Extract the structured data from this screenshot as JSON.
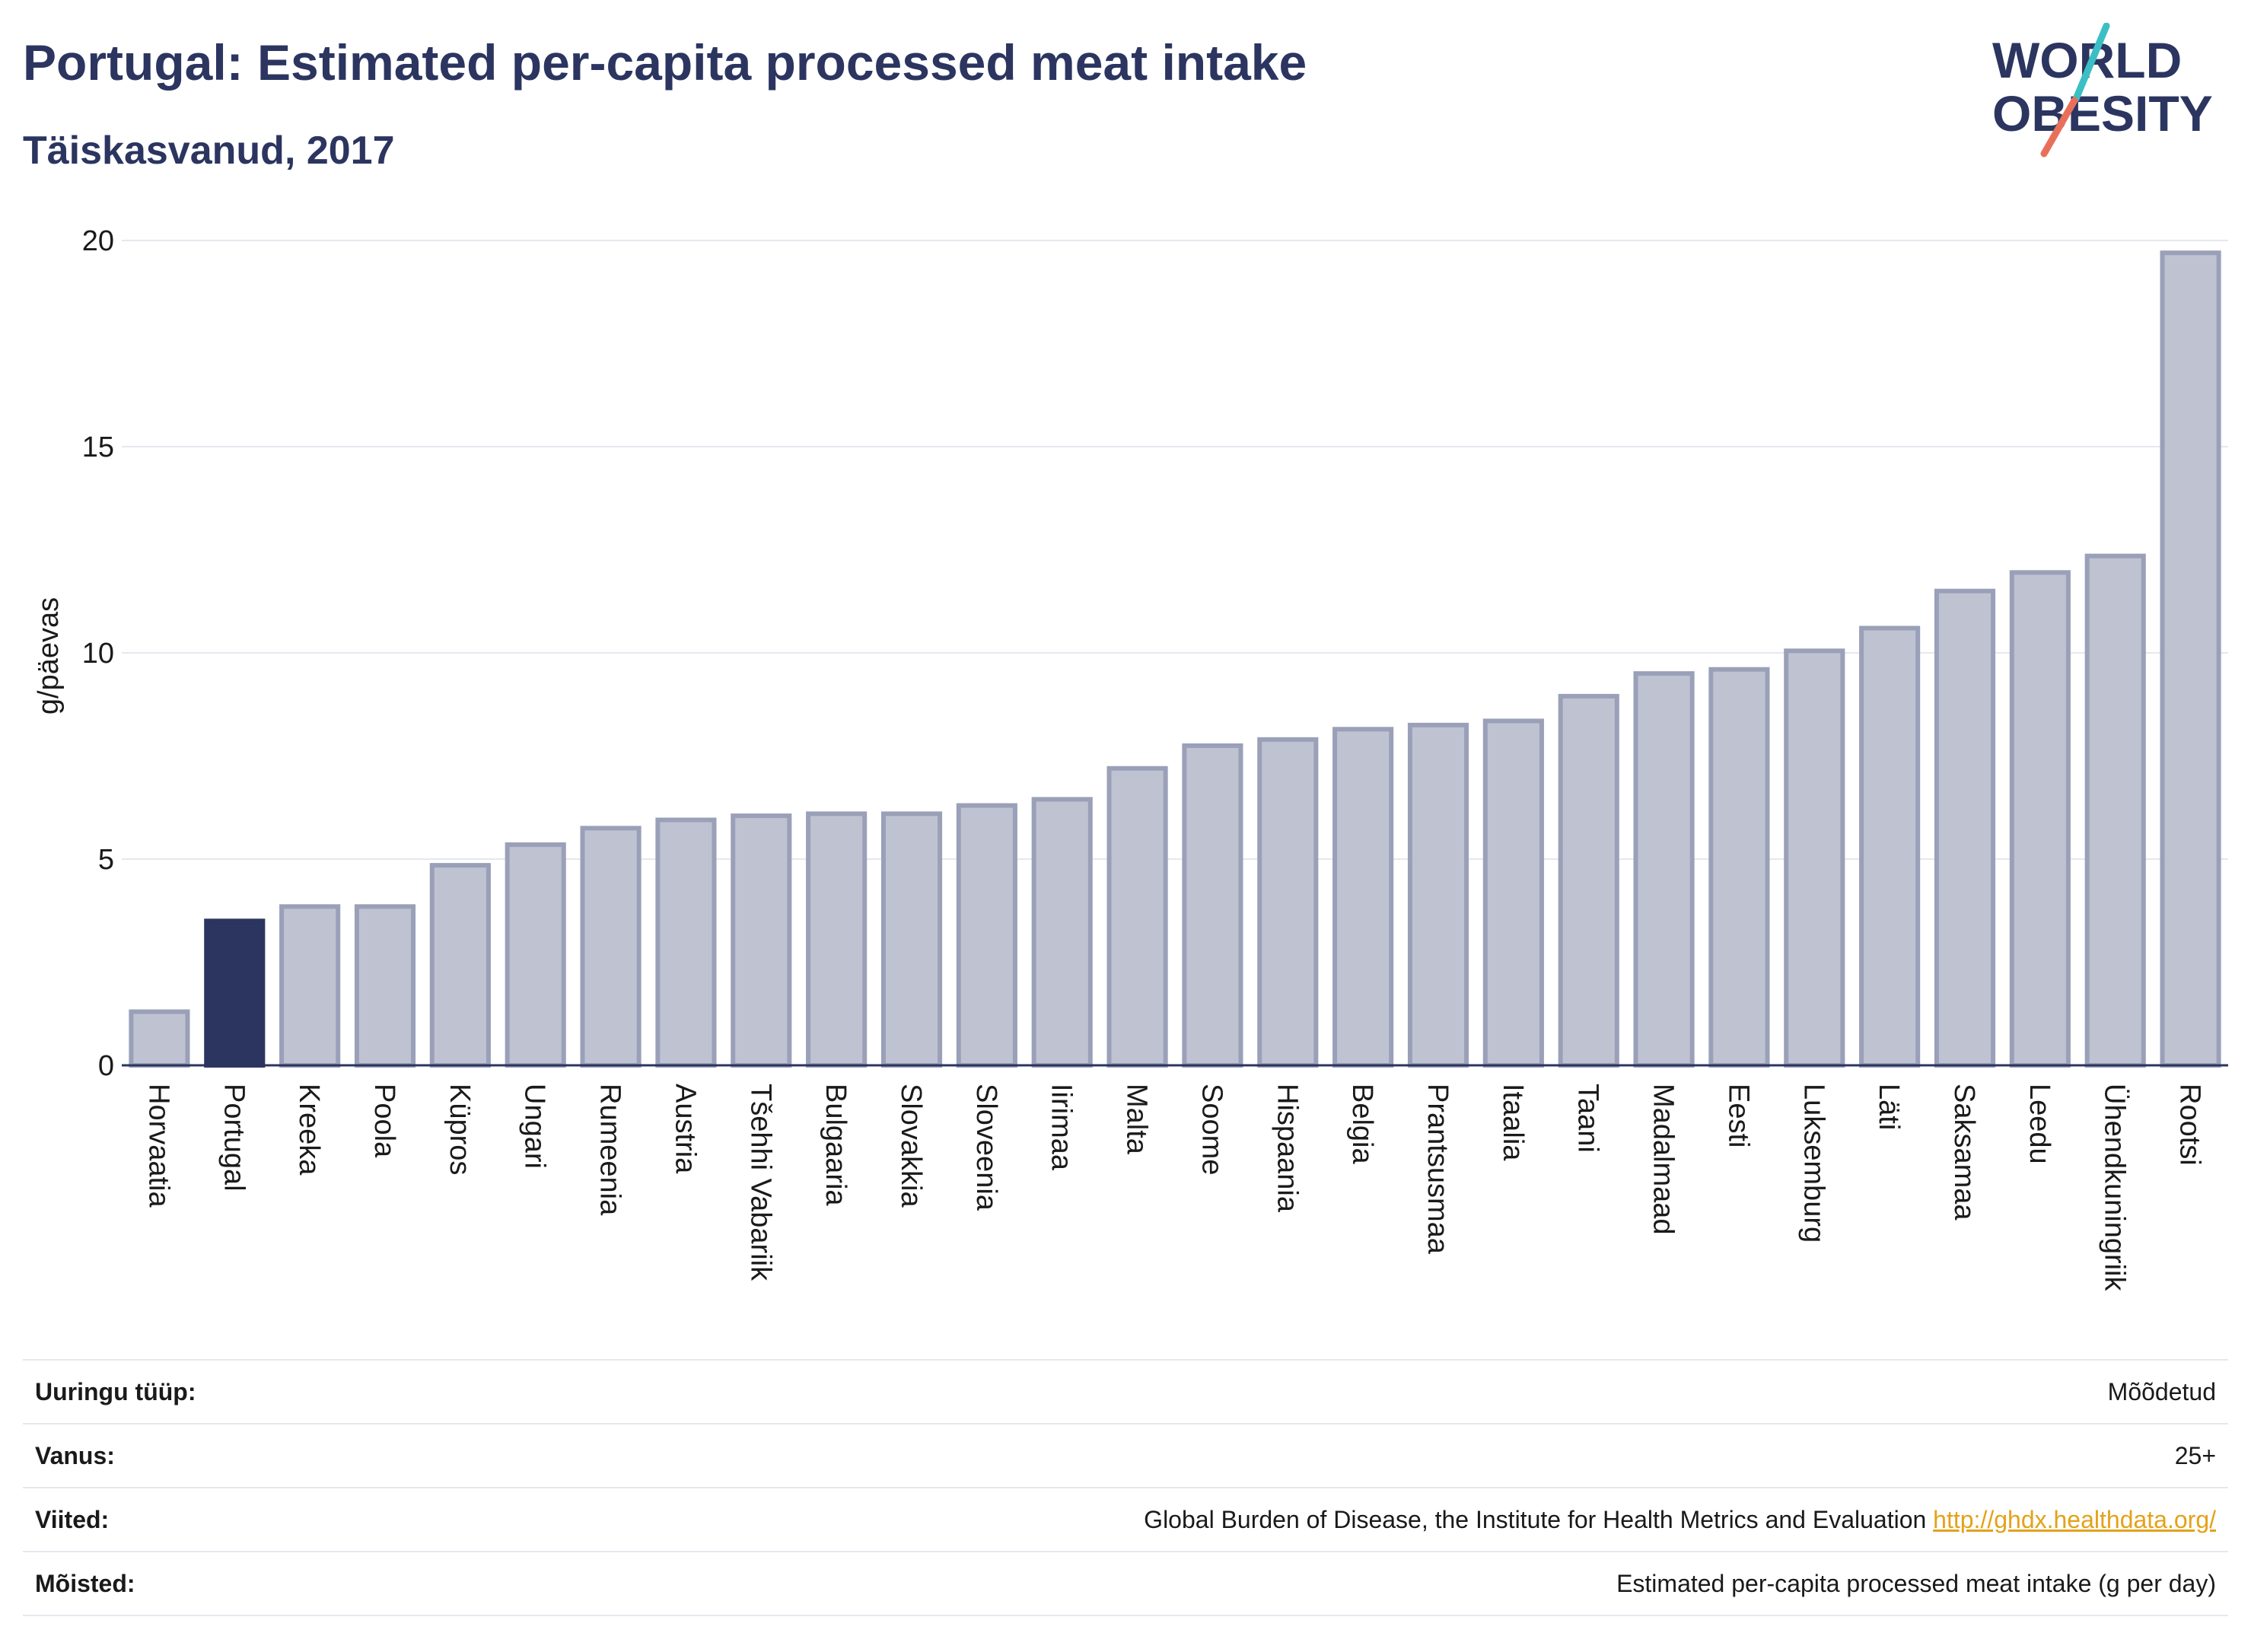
{
  "header": {
    "title": "Portugal: Estimated per-capita processed meat intake",
    "subtitle": "Täiskasvanud, 2017"
  },
  "logo": {
    "line1": "WORLD",
    "line2": "OBESITY",
    "colors": {
      "text": "#2b3560",
      "slash_teal": "#3bbfc4",
      "slash_coral": "#e8705a"
    }
  },
  "chart_data": {
    "type": "bar",
    "ylabel": "g/päevas",
    "xlabel": "",
    "ylim": [
      0,
      20
    ],
    "yticks": [
      0,
      5,
      10,
      15,
      20
    ],
    "grid": true,
    "highlight": "Portugal",
    "colors": {
      "bar": "#bfc3d1",
      "bar_edge": "#9aa0b8",
      "highlight": "#2b3560",
      "grid": "#e6e8ee",
      "axis": "#2b3560"
    },
    "categories": [
      "Horvaatia",
      "Portugal",
      "Kreeka",
      "Poola",
      "Küpros",
      "Ungari",
      "Rumeenia",
      "Austria",
      "Tšehhi Vabariik",
      "Bulgaaria",
      "Slovakkia",
      "Sloveenia",
      "Iirimaa",
      "Malta",
      "Soome",
      "Hispaania",
      "Belgia",
      "Prantsusmaa",
      "Itaalia",
      "Taani",
      "Madalmaad",
      "Eesti",
      "Luksemburg",
      "Läti",
      "Saksamaa",
      "Leedu",
      "Ühendkuningriik",
      "Rootsi"
    ],
    "values": [
      1.3,
      3.5,
      3.85,
      3.85,
      4.85,
      5.35,
      5.75,
      5.95,
      6.05,
      6.1,
      6.1,
      6.3,
      6.45,
      7.2,
      7.75,
      7.9,
      8.15,
      8.25,
      8.35,
      8.95,
      9.5,
      9.6,
      10.05,
      10.6,
      11.5,
      11.95,
      12.35,
      19.7
    ]
  },
  "meta": {
    "rows": [
      {
        "key": "Uuringu tüüp:",
        "value": "Mõõdetud"
      },
      {
        "key": "Vanus:",
        "value": "25+"
      },
      {
        "key": "Viited:",
        "value": "Global Burden of Disease, the Institute for Health Metrics and Evaluation",
        "link": "http://ghdx.healthdata.org/"
      },
      {
        "key": "Mõisted:",
        "value": "Estimated per-capita processed meat intake (g per day)"
      }
    ]
  }
}
